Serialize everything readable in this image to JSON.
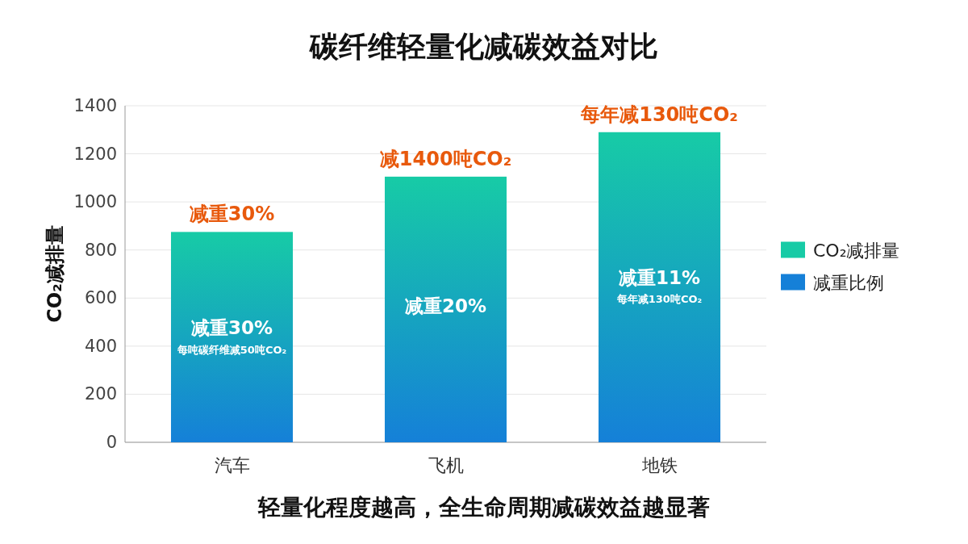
{
  "chart_data": {
    "type": "bar",
    "title": "碳纤维轻量化减碳效益对比",
    "ylabel": "CO₂减排量",
    "categories": [
      "汽车",
      "飞机",
      "地铁"
    ],
    "series": [
      {
        "name": "CO₂减排量",
        "color": "#17cba6",
        "values": [
          875,
          1105,
          1290
        ]
      },
      {
        "name": "减重比例",
        "color": "#1580d8",
        "values": [
          null,
          null,
          null
        ]
      }
    ],
    "ylim": [
      0,
      1400
    ],
    "yticks": [
      0,
      200,
      400,
      600,
      800,
      1000,
      1200,
      1400
    ],
    "grid": "y",
    "legend": "right",
    "annotations": [
      {
        "text": "减重30%",
        "x": "汽车",
        "y": 875
      },
      {
        "text": "减1400吨CO₂",
        "x": "飞机",
        "y": 1105
      },
      {
        "text": "每年减130吨CO₂",
        "x": "地铁",
        "y": 1290
      },
      "减重30%",
      "每吨碳纤维减50吨CO₂",
      "减重20%",
      "减重11%",
      "每年减130吨CO₂",
      "轻量化程度越高，全生命周期减碳效益越显著"
    ]
  }
}
